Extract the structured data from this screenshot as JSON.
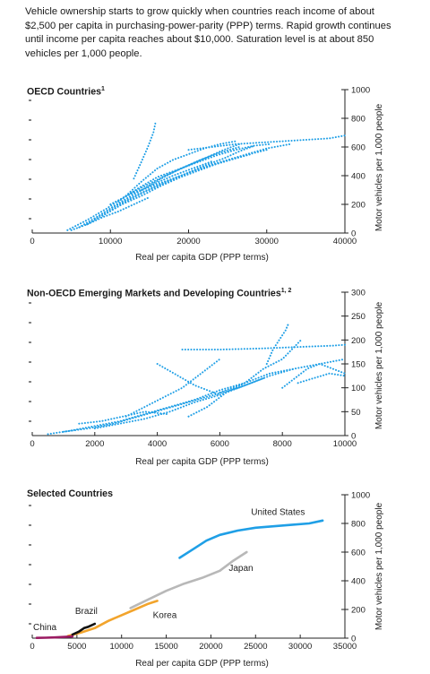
{
  "intro": "Vehicle ownership starts to grow quickly when countries reach income of about $2,500 per capita in purchasing-power-parity (PPP) terms. Rapid growth continues until income per capita reaches about $10,000. Saturation level is at about 850 vehicles per 1,000 people.",
  "chart_data": [
    {
      "type": "scatter",
      "title": "OECD Countries",
      "title_note": "1",
      "xlabel": "Real per capita GDP (PPP terms)",
      "ylabel": "Motor vehicles per 1,000 people",
      "xlim": [
        0,
        40000
      ],
      "ylim": [
        0,
        1000
      ],
      "xticks": [
        "0",
        "10000",
        "20000",
        "30000",
        "40000"
      ],
      "yticks": [
        "0",
        "200",
        "400",
        "600",
        "800",
        "1000"
      ],
      "color": "#1f9fe6",
      "series": [
        {
          "x": [
            4500,
            7000,
            9500,
            12000,
            14500,
            17000,
            19500,
            22000,
            24500,
            26500
          ],
          "y": [
            20,
            90,
            170,
            260,
            330,
            400,
            460,
            520,
            580,
            620
          ]
        },
        {
          "x": [
            7000,
            9500,
            12000,
            14500,
            17000,
            19500,
            22000,
            24500,
            26500,
            28500
          ],
          "y": [
            60,
            140,
            220,
            290,
            350,
            410,
            470,
            520,
            570,
            610
          ]
        },
        {
          "x": [
            9000,
            11500,
            14000,
            16500,
            19000,
            21500,
            24000,
            26500,
            28500,
            30000
          ],
          "y": [
            120,
            200,
            260,
            330,
            390,
            440,
            490,
            530,
            560,
            580
          ]
        },
        {
          "x": [
            10000,
            12500,
            15000,
            17500,
            20000,
            22500,
            25000,
            27500,
            30000,
            33000
          ],
          "y": [
            200,
            270,
            320,
            370,
            420,
            470,
            510,
            550,
            590,
            620
          ]
        },
        {
          "x": [
            6000,
            8500,
            11000,
            13500,
            16000,
            18500,
            21000,
            23500,
            26000,
            28000
          ],
          "y": [
            40,
            120,
            200,
            270,
            330,
            390,
            440,
            480,
            520,
            550
          ]
        },
        {
          "x": [
            11000,
            13500,
            16000,
            18500,
            21000,
            23500,
            26000,
            28500,
            30500
          ],
          "y": [
            220,
            310,
            390,
            440,
            490,
            540,
            580,
            610,
            620
          ]
        },
        {
          "x": [
            12000,
            14000,
            16000,
            18000,
            20000,
            22000,
            24000,
            26000
          ],
          "y": [
            260,
            360,
            450,
            510,
            550,
            590,
            620,
            640
          ]
        },
        {
          "x": [
            8000,
            10500,
            13000,
            15500,
            18000,
            20500,
            23000
          ],
          "y": [
            100,
            190,
            270,
            340,
            400,
            450,
            500
          ]
        },
        {
          "x": [
            13000,
            14000,
            14800,
            15500,
            15800
          ],
          "y": [
            380,
            500,
            600,
            700,
            780
          ]
        },
        {
          "x": [
            20000,
            23000,
            26000,
            29000,
            32000,
            35000,
            38000,
            40000
          ],
          "y": [
            580,
            600,
            620,
            630,
            640,
            650,
            660,
            680
          ]
        },
        {
          "x": [
            14000,
            16500,
            19000,
            21500,
            24000,
            26500
          ],
          "y": [
            300,
            380,
            450,
            510,
            560,
            600
          ]
        },
        {
          "x": [
            5000,
            7000,
            9000,
            11000,
            13000,
            15000
          ],
          "y": [
            20,
            60,
            110,
            150,
            200,
            250
          ]
        }
      ]
    },
    {
      "type": "scatter",
      "title": "Non-OECD Emerging Markets and Developing Countries",
      "title_note": "1, 2",
      "xlabel": "Real per capita GDP (PPP terms)",
      "ylabel": "Motor vehicles per 1,000 people",
      "xlim": [
        0,
        10000
      ],
      "ylim": [
        0,
        300
      ],
      "xticks": [
        "0",
        "2000",
        "4000",
        "6000",
        "8000",
        "10000"
      ],
      "yticks": [
        "0",
        "50",
        "100",
        "150",
        "200",
        "250",
        "300"
      ],
      "color": "#1f9fe6",
      "series": [
        {
          "x": [
            500,
            1200,
            2000,
            2800,
            3600,
            4400,
            5200,
            6000,
            6800
          ],
          "y": [
            3,
            10,
            20,
            30,
            45,
            60,
            75,
            95,
            110
          ]
        },
        {
          "x": [
            1000,
            1800,
            2600,
            3400,
            4200,
            5000,
            5800,
            6600,
            7400
          ],
          "y": [
            8,
            15,
            25,
            40,
            55,
            70,
            85,
            100,
            120
          ]
        },
        {
          "x": [
            2000,
            2800,
            3600,
            4400,
            5200,
            6000,
            6800,
            7600,
            8400
          ],
          "y": [
            15,
            25,
            35,
            50,
            70,
            85,
            105,
            125,
            140
          ]
        },
        {
          "x": [
            3000,
            3600,
            4200,
            4800,
            5400,
            6000
          ],
          "y": [
            40,
            60,
            80,
            100,
            130,
            160
          ]
        },
        {
          "x": [
            4800,
            6000,
            7200,
            8400,
            9600,
            10000
          ],
          "y": [
            180,
            180,
            182,
            185,
            188,
            190
          ]
        },
        {
          "x": [
            5000,
            5600,
            6200,
            6800,
            7400,
            8000,
            8600
          ],
          "y": [
            40,
            60,
            90,
            110,
            140,
            160,
            200
          ]
        },
        {
          "x": [
            6000,
            6800,
            7600,
            8400,
            9200,
            10000
          ],
          "y": [
            90,
            110,
            130,
            140,
            150,
            160
          ]
        },
        {
          "x": [
            8000,
            8400,
            8800,
            9200,
            9600,
            10000
          ],
          "y": [
            100,
            120,
            140,
            150,
            140,
            130
          ]
        },
        {
          "x": [
            7500,
            7700,
            7900,
            8100,
            8200
          ],
          "y": [
            150,
            180,
            200,
            220,
            235
          ]
        },
        {
          "x": [
            4000,
            4400,
            4800,
            5200,
            5600,
            6000
          ],
          "y": [
            150,
            135,
            120,
            105,
            95,
            85
          ]
        },
        {
          "x": [
            1500,
            2200,
            2900,
            3600,
            4300
          ],
          "y": [
            25,
            30,
            40,
            50,
            45
          ]
        },
        {
          "x": [
            8500,
            9000,
            9500,
            10000
          ],
          "y": [
            110,
            120,
            130,
            125
          ]
        }
      ]
    },
    {
      "type": "line",
      "title": "Selected Countries",
      "xlabel": "Real per capita GDP (PPP terms)",
      "ylabel": "Motor vehicles per 1,000 people",
      "xlim": [
        0,
        35000
      ],
      "ylim": [
        0,
        1000
      ],
      "xticks": [
        "0",
        "5000",
        "10000",
        "15000",
        "20000",
        "25000",
        "30000",
        "35000"
      ],
      "yticks": [
        "0",
        "200",
        "400",
        "600",
        "800",
        "1000"
      ],
      "series": [
        {
          "name": "United States",
          "color": "#1f9fe6",
          "x": [
            16500,
            18000,
            19500,
            21000,
            23000,
            25000,
            27000,
            29000,
            31000,
            32500
          ],
          "y": [
            560,
            620,
            680,
            720,
            750,
            770,
            780,
            790,
            800,
            820
          ]
        },
        {
          "name": "Japan",
          "color": "#b8b8b8",
          "x": [
            11000,
            13000,
            15000,
            17000,
            19000,
            21000,
            22500,
            24000
          ],
          "y": [
            210,
            270,
            330,
            380,
            420,
            470,
            540,
            600
          ]
        },
        {
          "name": "Korea",
          "color": "#f2a42c",
          "x": [
            4000,
            5500,
            7000,
            8500,
            10000,
            11500,
            13000,
            14000
          ],
          "y": [
            15,
            40,
            70,
            120,
            160,
            200,
            240,
            260
          ]
        },
        {
          "name": "Brazil",
          "color": "#111111",
          "x": [
            4500,
            5200,
            5800,
            6300,
            7000
          ],
          "y": [
            25,
            45,
            70,
            80,
            100
          ]
        },
        {
          "name": "China",
          "color": "#9b1b62",
          "x": [
            500,
            1500,
            2500,
            3500,
            4500
          ],
          "y": [
            2,
            3,
            5,
            8,
            12
          ]
        }
      ]
    }
  ]
}
